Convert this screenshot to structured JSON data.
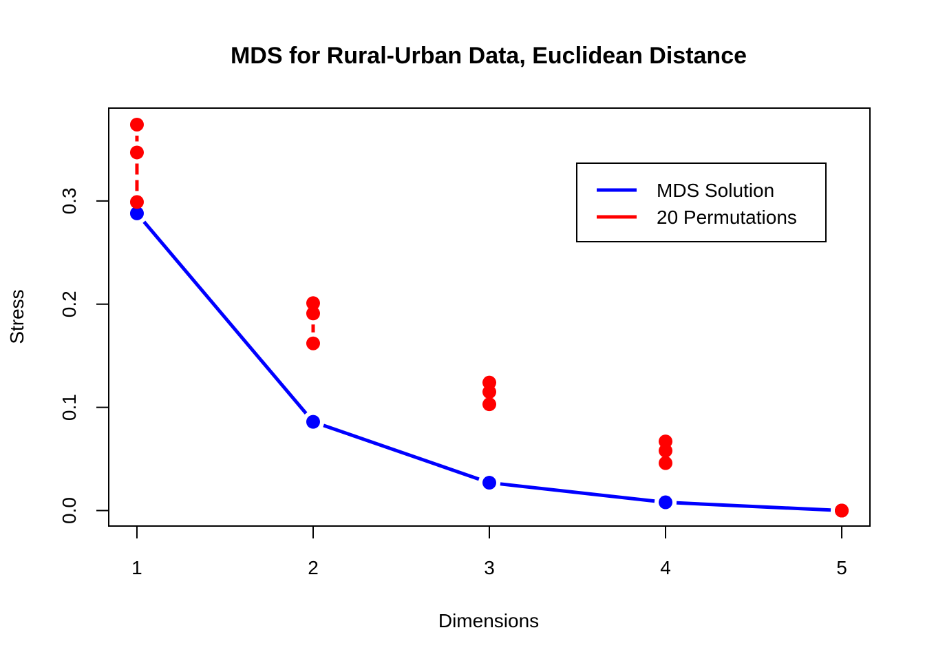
{
  "chart_data": {
    "type": "line",
    "title": "MDS for Rural-Urban Data, Euclidean Distance",
    "xlabel": "Dimensions",
    "ylabel": "Stress",
    "xlim": [
      0.84,
      5.16
    ],
    "ylim": [
      -0.015,
      0.39
    ],
    "x_ticks": [
      "1",
      "2",
      "3",
      "4",
      "5"
    ],
    "y_ticks": [
      "0.0",
      "0.1",
      "0.2",
      "0.3"
    ],
    "grid": false,
    "legend_position": "top-right",
    "series": [
      {
        "name": "MDS Solution",
        "color": "#0000ff",
        "style": "line-with-points",
        "x": [
          1,
          2,
          3,
          4,
          5
        ],
        "y": [
          0.288,
          0.086,
          0.027,
          0.008,
          0.0
        ]
      },
      {
        "name": "20 Permutations",
        "color": "#ff0000",
        "style": "points-with-dashed-ranges",
        "x": [
          1,
          2,
          3,
          4,
          5
        ],
        "min": [
          0.299,
          0.162,
          0.103,
          0.046,
          0.0
        ],
        "mid": [
          0.347,
          0.191,
          0.115,
          0.058,
          0.0
        ],
        "max": [
          0.374,
          0.201,
          0.124,
          0.067,
          0.0
        ]
      }
    ]
  }
}
